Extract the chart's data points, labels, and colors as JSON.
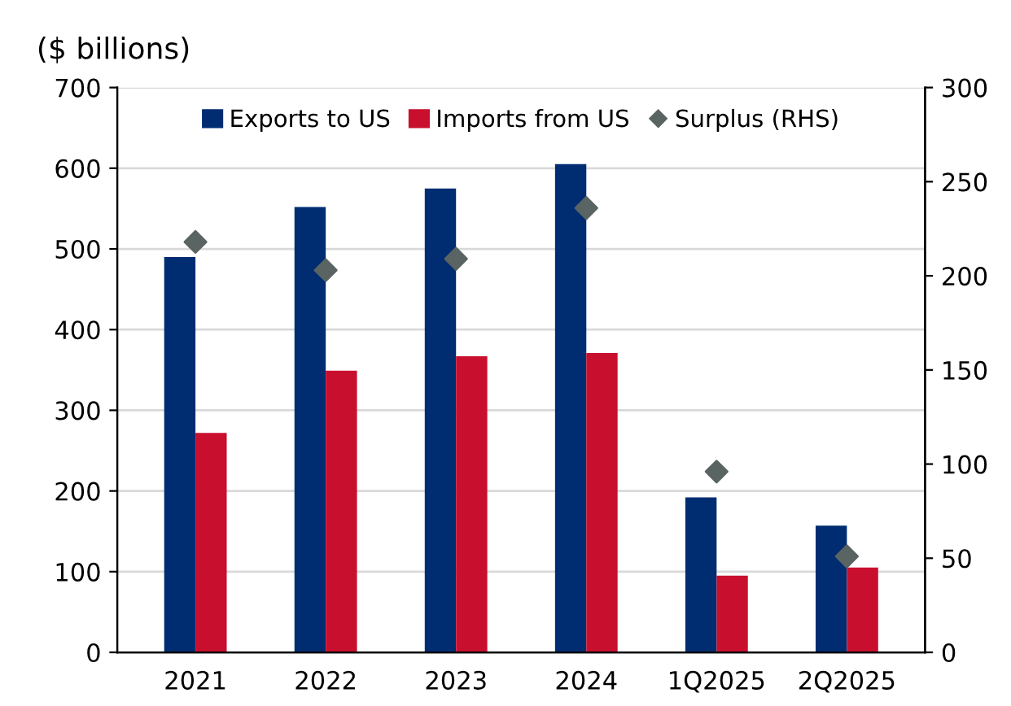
{
  "chart_data": {
    "type": "bar",
    "ylabel": "($ billions)",
    "categories": [
      "2021",
      "2022",
      "2023",
      "2024",
      "1Q2025",
      "2Q2025"
    ],
    "series": [
      {
        "name": "Exports to US",
        "color": "#002d72",
        "values": [
          490,
          552,
          575,
          605,
          192,
          157
        ]
      },
      {
        "name": "Imports from US",
        "color": "#c8102e",
        "values": [
          272,
          349,
          367,
          371,
          95,
          105
        ]
      },
      {
        "name": "Surplus (RHS)",
        "type": "scatter",
        "axis": "y2",
        "marker": "diamond",
        "color": "#5a6462",
        "values": [
          218,
          203,
          209,
          236,
          96,
          51
        ]
      }
    ],
    "ylim": [
      0,
      700
    ],
    "yticks": [
      0,
      100,
      200,
      300,
      400,
      500,
      600,
      700
    ],
    "y2lim": [
      0,
      300
    ],
    "y2ticks": [
      0,
      50,
      100,
      150,
      200,
      250,
      300
    ],
    "grid": "y",
    "legend": "top"
  }
}
